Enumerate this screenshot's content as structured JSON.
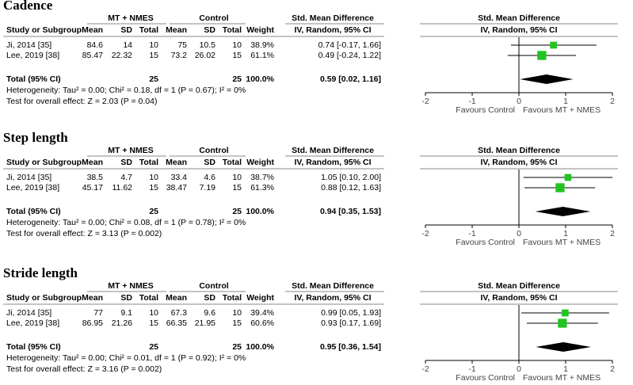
{
  "chart_data": [
    {
      "type": "forest",
      "title": "Cadence",
      "group_headers": [
        "MT + NMES",
        "Control",
        "Std. Mean Difference",
        "Std. Mean Difference"
      ],
      "columns": [
        "Study or Subgroup",
        "Mean",
        "SD",
        "Total",
        "Mean",
        "SD",
        "Total",
        "Weight",
        "IV, Random, 95% CI",
        "IV, Random, 95% CI"
      ],
      "studies": [
        {
          "name": "Ji, 2014 [35]",
          "mt_mean": 84.6,
          "mt_sd": 14,
          "mt_total": 10,
          "ctrl_mean": 75,
          "ctrl_sd": 10.5,
          "ctrl_total": 10,
          "weight": 38.9,
          "weight_label": "38.9%",
          "smd": 0.74,
          "ci_low": -0.17,
          "ci_high": 1.66,
          "effect_label": "0.74 [-0.17, 1.66]"
        },
        {
          "name": "Lee, 2019 [38]",
          "mt_mean": 85.47,
          "mt_sd": 22.32,
          "mt_total": 15,
          "ctrl_mean": 73.2,
          "ctrl_sd": 26.02,
          "ctrl_total": 15,
          "weight": 61.1,
          "weight_label": "61.1%",
          "smd": 0.49,
          "ci_low": -0.24,
          "ci_high": 1.22,
          "effect_label": "0.49 [-0.24, 1.22]"
        }
      ],
      "total": {
        "label": "Total (95% CI)",
        "mt_total": 25,
        "ctrl_total": 25,
        "weight_label": "100.0%",
        "smd": 0.59,
        "ci_low": 0.02,
        "ci_high": 1.16,
        "effect_label": "0.59 [0.02, 1.16]"
      },
      "heterogeneity": "Heterogeneity: Tau² = 0.00; Chi² = 0.18, df = 1 (P = 0.67); I² = 0%",
      "overall_effect": "Test for overall effect: Z = 2.03 (P = 0.04)",
      "xlim": [
        -2,
        2
      ],
      "xticks": [
        -2,
        -1,
        0,
        1,
        2
      ],
      "favours": [
        "Favours Control",
        "Favours MT + NMES"
      ],
      "color": "#22c322"
    },
    {
      "type": "forest",
      "title": "Step length",
      "group_headers": [
        "MT + NMES",
        "Control",
        "Std. Mean Difference",
        "Std. Mean Difference"
      ],
      "columns": [
        "Study or Subgroup",
        "Mean",
        "SD",
        "Total",
        "Mean",
        "SD",
        "Total",
        "Weight",
        "IV, Random, 95% CI",
        "IV, Random, 95% CI"
      ],
      "studies": [
        {
          "name": "Ji, 2014 [35]",
          "mt_mean": 38.5,
          "mt_sd": 4.7,
          "mt_total": 10,
          "ctrl_mean": 33.4,
          "ctrl_sd": 4.6,
          "ctrl_total": 10,
          "weight": 38.7,
          "weight_label": "38.7%",
          "smd": 1.05,
          "ci_low": 0.1,
          "ci_high": 2.0,
          "effect_label": "1.05 [0.10, 2.00]"
        },
        {
          "name": "Lee, 2019 [38]",
          "mt_mean": 45.17,
          "mt_sd": 11.62,
          "mt_total": 15,
          "ctrl_mean": 38.47,
          "ctrl_sd": 7.19,
          "ctrl_total": 15,
          "weight": 61.3,
          "weight_label": "61.3%",
          "smd": 0.88,
          "ci_low": 0.12,
          "ci_high": 1.63,
          "effect_label": "0.88 [0.12, 1.63]"
        }
      ],
      "total": {
        "label": "Total (95% CI)",
        "mt_total": 25,
        "ctrl_total": 25,
        "weight_label": "100.0%",
        "smd": 0.94,
        "ci_low": 0.35,
        "ci_high": 1.53,
        "effect_label": "0.94 [0.35, 1.53]"
      },
      "heterogeneity": "Heterogeneity: Tau² = 0.00; Chi² = 0.08, df = 1 (P = 0.78); I² = 0%",
      "overall_effect": "Test for overall effect: Z = 3.13 (P = 0.002)",
      "xlim": [
        -2,
        2
      ],
      "xticks": [
        -2,
        -1,
        0,
        1,
        2
      ],
      "favours": [
        "Favours Control",
        "Favours MT + NMES"
      ],
      "color": "#22c322"
    },
    {
      "type": "forest",
      "title": "Stride length",
      "group_headers": [
        "MT + NMES",
        "Control",
        "Std. Mean Difference",
        "Std. Mean Difference"
      ],
      "columns": [
        "Study or Subgroup",
        "Mean",
        "SD",
        "Total",
        "Mean",
        "SD",
        "Total",
        "Weight",
        "IV, Random, 95% CI",
        "IV, Random, 95% CI"
      ],
      "studies": [
        {
          "name": "Ji, 2014 [35]",
          "mt_mean": 77,
          "mt_sd": 9.1,
          "mt_total": 10,
          "ctrl_mean": 67.3,
          "ctrl_sd": 9.6,
          "ctrl_total": 10,
          "weight": 39.4,
          "weight_label": "39.4%",
          "smd": 0.99,
          "ci_low": 0.05,
          "ci_high": 1.93,
          "effect_label": "0.99 [0.05, 1.93]"
        },
        {
          "name": "Lee, 2019 [38]",
          "mt_mean": 86.95,
          "mt_sd": 21.26,
          "mt_total": 15,
          "ctrl_mean": 66.35,
          "ctrl_sd": 21.95,
          "ctrl_total": 15,
          "weight": 60.6,
          "weight_label": "60.6%",
          "smd": 0.93,
          "ci_low": 0.17,
          "ci_high": 1.69,
          "effect_label": "0.93 [0.17, 1.69]"
        }
      ],
      "total": {
        "label": "Total (95% CI)",
        "mt_total": 25,
        "ctrl_total": 25,
        "weight_label": "100.0%",
        "smd": 0.95,
        "ci_low": 0.36,
        "ci_high": 1.54,
        "effect_label": "0.95 [0.36, 1.54]"
      },
      "heterogeneity": "Heterogeneity: Tau² = 0.00; Chi² = 0.01, df = 1 (P = 0.92); I² = 0%",
      "overall_effect": "Test for overall effect: Z = 3.16 (P = 0.002)",
      "xlim": [
        -2,
        2
      ],
      "xticks": [
        -2,
        -1,
        0,
        1,
        2
      ],
      "favours": [
        "Favours Control",
        "Favours MT + NMES"
      ],
      "color": "#22c322"
    }
  ]
}
